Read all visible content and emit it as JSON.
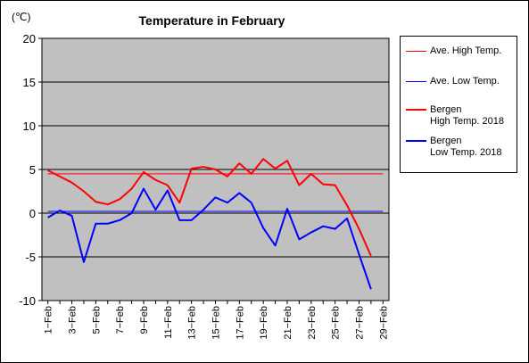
{
  "chart_data": {
    "type": "line",
    "title": "Temperature in February",
    "unit_label": "(℃)",
    "ylim": [
      -10,
      20
    ],
    "y_ticks": [
      "20",
      "15",
      "10",
      "5",
      "0",
      "-5",
      "-10"
    ],
    "x_tick_labels": [
      "1−Feb",
      "3−Feb",
      "5−Feb",
      "7−Feb",
      "9−Feb",
      "11−Feb",
      "13−Feb",
      "15−Feb",
      "17−Feb",
      "19−Feb",
      "21−Feb",
      "23−Feb",
      "25−Feb",
      "27−Feb",
      "29−Feb"
    ],
    "x": [
      1,
      2,
      3,
      4,
      5,
      6,
      7,
      8,
      9,
      10,
      11,
      12,
      13,
      14,
      15,
      16,
      17,
      18,
      19,
      20,
      21,
      22,
      23,
      24,
      25,
      26,
      27,
      28
    ],
    "grid": true,
    "legend_position": "right",
    "colors": {
      "plot_background": "#c0c0c0",
      "high": "#ff0000",
      "low": "#0000ff"
    },
    "series": [
      {
        "name": "Ave. High Temp.",
        "kind": "average",
        "color": "#ff0000",
        "constant": 4.5,
        "x_range": [
          1,
          29
        ]
      },
      {
        "name": "Ave. Low Temp.",
        "kind": "average",
        "color": "#0000ff",
        "constant": 0.2,
        "x_range": [
          1,
          29
        ]
      },
      {
        "name": "Bergen\nHigh Temp. 2018",
        "kind": "daily",
        "color": "#ff0000",
        "values": [
          4.9,
          4.2,
          3.5,
          2.5,
          1.3,
          1.0,
          1.6,
          2.8,
          4.7,
          3.8,
          3.2,
          1.2,
          5.1,
          5.3,
          5.0,
          4.2,
          5.7,
          4.5,
          6.2,
          5.1,
          6.0,
          3.2,
          4.5,
          3.3,
          3.2,
          0.9,
          -1.8,
          -4.9
        ]
      },
      {
        "name": "Bergen\nLow Temp. 2018",
        "kind": "daily",
        "color": "#0000ff",
        "values": [
          -0.5,
          0.3,
          -0.3,
          -5.6,
          -1.2,
          -1.2,
          -0.8,
          0.0,
          2.8,
          0.4,
          2.6,
          -0.8,
          -0.8,
          0.4,
          1.8,
          1.2,
          2.3,
          1.2,
          -1.7,
          -3.7,
          0.5,
          -3.0,
          -2.2,
          -1.5,
          -1.8,
          -0.6,
          -4.7,
          -8.7
        ]
      }
    ],
    "legend": [
      {
        "label_lines": [
          "Ave. High Temp."
        ],
        "color": "#ff0000",
        "thick": false
      },
      {
        "label_lines": [
          "Ave. Low Temp."
        ],
        "color": "#0000ff",
        "thick": false
      },
      {
        "label_lines": [
          "Bergen",
          "High Temp. 2018"
        ],
        "color": "#ff0000",
        "thick": true
      },
      {
        "label_lines": [
          "Bergen",
          "Low Temp. 2018"
        ],
        "color": "#0000ff",
        "thick": true
      }
    ]
  }
}
